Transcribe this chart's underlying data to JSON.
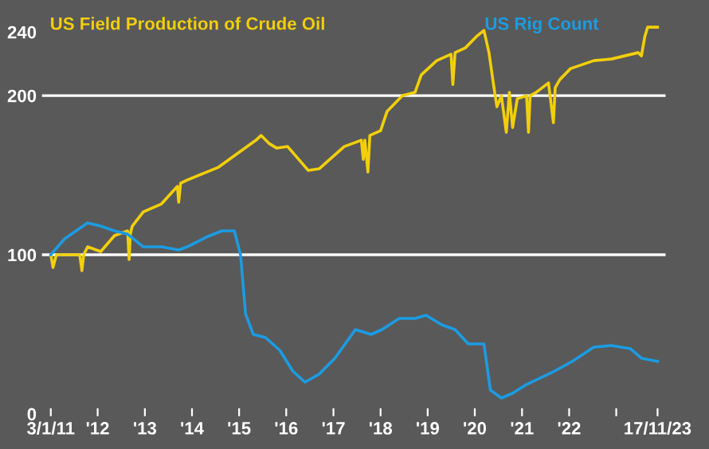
{
  "chart_data": {
    "type": "line",
    "series": [
      {
        "name": "US Field Production of Crude Oil",
        "color": "#f2cf0a",
        "x": [
          "2011-01-03",
          "2011-01-20",
          "2011-02-15",
          "2011-08-15",
          "2011-09-01",
          "2011-09-15",
          "2011-10-15",
          "2012-01-25",
          "2012-05-10",
          "2012-08-20",
          "2012-09-01",
          "2012-09-10",
          "2012-09-25",
          "2012-12-20",
          "2013-05-10",
          "2013-09-10",
          "2013-09-20",
          "2013-10-05",
          "2013-11-25",
          "2014-07-25",
          "2015-01-12",
          "2015-05-12",
          "2015-06-20",
          "2015-08-20",
          "2015-10-20",
          "2016-01-12",
          "2016-06-20",
          "2016-09-12",
          "2017-03-25",
          "2017-08-05",
          "2017-08-20",
          "2017-09-01",
          "2017-09-25",
          "2017-10-10",
          "2018-01-01",
          "2018-02-20",
          "2018-06-20",
          "2018-09-25",
          "2018-11-12",
          "2019-03-12",
          "2019-07-01",
          "2019-07-15",
          "2019-08-01",
          "2019-10-20",
          "2020-01-12",
          "2020-03-12",
          "2020-04-20",
          "2020-05-25",
          "2020-06-20",
          "2020-07-25",
          "2020-09-01",
          "2020-09-25",
          "2020-10-20",
          "2020-11-25",
          "2021-02-05",
          "2021-02-20",
          "2021-03-05",
          "2021-04-20",
          "2021-07-25",
          "2021-09-01",
          "2021-09-15",
          "2021-10-20",
          "2022-01-12",
          "2022-07-12",
          "2022-11-25",
          "2023-06-20",
          "2023-07-15",
          "2023-08-10",
          "2023-09-01",
          "2023-11-17"
        ],
        "values": [
          100,
          92,
          100,
          100,
          90,
          100,
          105,
          102,
          112,
          115,
          97,
          113,
          118,
          127,
          132,
          143,
          133,
          145,
          147,
          155,
          165,
          172,
          175,
          170,
          167,
          168,
          153,
          154,
          168,
          172,
          160,
          172,
          152,
          175,
          178,
          190,
          200,
          202,
          213,
          222,
          226,
          207,
          227,
          230,
          237,
          241,
          227,
          207,
          193,
          200,
          177,
          202,
          180,
          198,
          200,
          177,
          200,
          202,
          208,
          183,
          205,
          210,
          217,
          222,
          223,
          227,
          225,
          237,
          243,
          243
        ]
      },
      {
        "name": "US Rig Count",
        "color": "#1b9ce2",
        "x": [
          "2011-01-03",
          "2011-04-20",
          "2011-10-15",
          "2012-01-25",
          "2012-05-10",
          "2012-08-20",
          "2012-12-20",
          "2013-05-10",
          "2013-09-20",
          "2013-11-25",
          "2014-04-20",
          "2014-08-20",
          "2014-11-25",
          "2015-01-12",
          "2015-02-20",
          "2015-04-20",
          "2015-07-25",
          "2015-11-12",
          "2016-02-20",
          "2016-05-25",
          "2016-09-12",
          "2017-01-12",
          "2017-06-20",
          "2017-10-20",
          "2018-01-12",
          "2018-05-25",
          "2018-09-25",
          "2018-12-20",
          "2019-04-20",
          "2019-08-01",
          "2019-11-12",
          "2020-03-12",
          "2020-05-01",
          "2020-07-25",
          "2020-10-20",
          "2021-01-25",
          "2021-08-20",
          "2022-01-25",
          "2022-07-12",
          "2022-11-25",
          "2023-04-20",
          "2023-07-15",
          "2023-11-17"
        ],
        "values": [
          100,
          110,
          120,
          118,
          115,
          113,
          105,
          105,
          103,
          105,
          111,
          115,
          115,
          100,
          63,
          50,
          48,
          40,
          27,
          20,
          25,
          35,
          53,
          50,
          53,
          60,
          60,
          62,
          56,
          53,
          44,
          44,
          15,
          10,
          13,
          18,
          26,
          33,
          42,
          43,
          41,
          35,
          33
        ]
      }
    ],
    "xlim": [
      "2010-10-20",
      "2024-01-25"
    ],
    "xticks": [
      {
        "value": "2011-01-03",
        "label": "3/1/11"
      },
      {
        "value": "2012-01-01",
        "label": "'12"
      },
      {
        "value": "2013-01-01",
        "label": "'13"
      },
      {
        "value": "2014-01-01",
        "label": "'14"
      },
      {
        "value": "2015-01-01",
        "label": "'15"
      },
      {
        "value": "2016-01-01",
        "label": "'16"
      },
      {
        "value": "2017-01-01",
        "label": "'17"
      },
      {
        "value": "2018-01-01",
        "label": "'18"
      },
      {
        "value": "2019-01-01",
        "label": "'19"
      },
      {
        "value": "2020-01-01",
        "label": "'20"
      },
      {
        "value": "2021-01-01",
        "label": "'21"
      },
      {
        "value": "2022-01-01",
        "label": "'22"
      },
      {
        "value": "2023-01-01",
        "label": null
      },
      {
        "value": "2023-11-17",
        "label": "17/11/23"
      }
    ],
    "ylim": [
      -2,
      255
    ],
    "yticks": [
      0,
      100,
      200,
      240
    ],
    "ref_lines": [
      {
        "axis": "y",
        "value": 100,
        "color": "#ffffff"
      },
      {
        "axis": "y",
        "value": 200,
        "color": "#ffffff"
      }
    ],
    "legend": "top left",
    "grid": false
  }
}
